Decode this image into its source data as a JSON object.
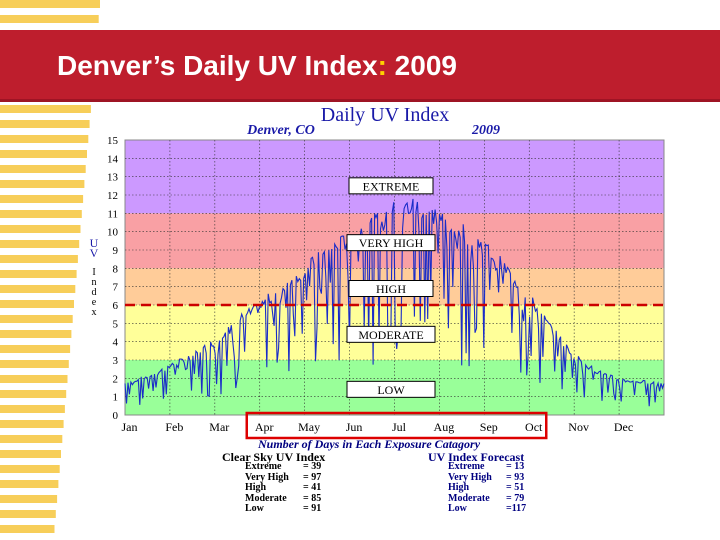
{
  "slide": {
    "title_main": "Denver’s Daily UV Index",
    "title_colon": ":",
    "title_year": " 2009"
  },
  "colors": {
    "banner": "#be1e2d",
    "stripe": "#f6c63c",
    "extreme_band": "#cc99ff",
    "very_high_band": "#f9a0a4",
    "high_band": "#ffcc99",
    "moderate_band": "#ffff99",
    "low_band": "#99ff99",
    "series": "#1a2cc8",
    "forecast_line": "#cc0000",
    "highlight_box": "#dd0000"
  },
  "chart_data": {
    "type": "line",
    "title": "Daily UV Index",
    "subtitle_left": "Denver, CO",
    "subtitle_right": "2009",
    "ylabel": "UV Index",
    "ylim": [
      0,
      15
    ],
    "yticks": [
      "0",
      "1",
      "2",
      "3",
      "4",
      "5",
      "6",
      "7",
      "8",
      "9",
      "10",
      "11",
      "12",
      "13",
      "14",
      "15"
    ],
    "months": [
      "Jan",
      "Feb",
      "Mar",
      "Apr",
      "May",
      "Jun",
      "Jul",
      "Aug",
      "Sep",
      "Oct",
      "Nov",
      "Dec"
    ],
    "grid": true,
    "bands": [
      {
        "name": "LOW",
        "from": 0,
        "to": 3
      },
      {
        "name": "MODERATE",
        "from": 3,
        "to": 6
      },
      {
        "name": "HIGH",
        "from": 6,
        "to": 8
      },
      {
        "name": "VERY HIGH",
        "from": 8,
        "to": 11
      },
      {
        "name": "EXTREME",
        "from": 11,
        "to": 15
      }
    ],
    "band_labels": {
      "extreme": "EXTREME",
      "very_high": "VERY HIGH",
      "high": "HIGH",
      "moderate": "MODERATE",
      "low": "LOW"
    },
    "threshold_line": 6,
    "highlight_months": [
      "Apr",
      "Oct"
    ],
    "series_upper_envelope": [
      {
        "month": 0.0,
        "uv": 1.8
      },
      {
        "month": 0.5,
        "uv": 2.2
      },
      {
        "month": 1.0,
        "uv": 2.8
      },
      {
        "month": 1.5,
        "uv": 3.4
      },
      {
        "month": 2.0,
        "uv": 4.2
      },
      {
        "month": 2.5,
        "uv": 5.4
      },
      {
        "month": 3.0,
        "uv": 6.2
      },
      {
        "month": 3.5,
        "uv": 7.3
      },
      {
        "month": 4.0,
        "uv": 8.3
      },
      {
        "month": 4.5,
        "uv": 9.3
      },
      {
        "month": 5.0,
        "uv": 10.1
      },
      {
        "month": 5.5,
        "uv": 10.9
      },
      {
        "month": 6.0,
        "uv": 11.7
      },
      {
        "month": 6.5,
        "uv": 12.0
      },
      {
        "month": 7.0,
        "uv": 11.3
      },
      {
        "month": 7.5,
        "uv": 10.6
      },
      {
        "month": 8.0,
        "uv": 9.6
      },
      {
        "month": 8.5,
        "uv": 8.3
      },
      {
        "month": 9.0,
        "uv": 6.7
      },
      {
        "month": 9.5,
        "uv": 4.9
      },
      {
        "month": 10.0,
        "uv": 3.4
      },
      {
        "month": 10.5,
        "uv": 2.5
      },
      {
        "month": 11.0,
        "uv": 2.0
      },
      {
        "month": 11.5,
        "uv": 1.9
      },
      {
        "month": 12.0,
        "uv": 1.8
      }
    ],
    "days_title": "Number of Days in Each Exposure Catagory",
    "clear_sky": {
      "heading": "Clear Sky UV Index",
      "rows": [
        {
          "label": "Extreme",
          "value": "= 39"
        },
        {
          "label": "Very High",
          "value": "= 97"
        },
        {
          "label": "High",
          "value": "= 41"
        },
        {
          "label": "Moderate",
          "value": "= 85"
        },
        {
          "label": "Low",
          "value": "= 91"
        }
      ]
    },
    "forecast": {
      "heading": "UV Index Forecast",
      "rows": [
        {
          "label": "Extreme",
          "value": "= 13"
        },
        {
          "label": "Very High",
          "value": "= 93"
        },
        {
          "label": "High",
          "value": "= 51"
        },
        {
          "label": "Moderate",
          "value": "= 79"
        },
        {
          "label": "Low",
          "value": "=117"
        }
      ]
    }
  }
}
